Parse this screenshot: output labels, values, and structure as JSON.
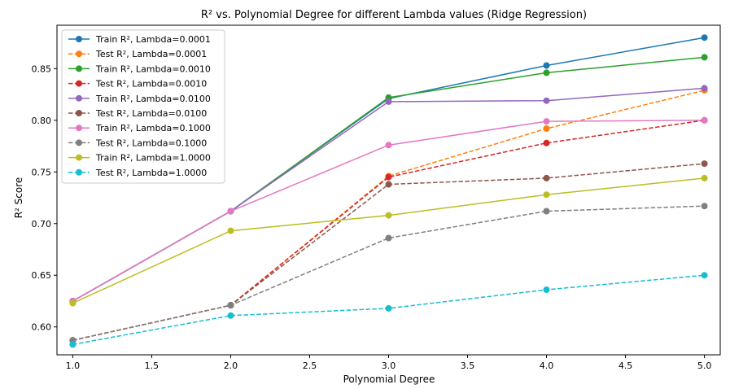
{
  "chart_data": {
    "type": "line",
    "title": "R² vs. Polynomial Degree for different Lambda values (Ridge Regression)",
    "xlabel": "Polynomial Degree",
    "ylabel": "R² Score",
    "xlim": [
      0.9,
      5.1
    ],
    "ylim": [
      0.573,
      0.892
    ],
    "x_ticks": [
      "1.0",
      "1.5",
      "2.0",
      "2.5",
      "3.0",
      "3.5",
      "4.0",
      "4.5",
      "5.0"
    ],
    "y_ticks": [
      "0.60",
      "0.65",
      "0.70",
      "0.75",
      "0.80",
      "0.85"
    ],
    "grid": false,
    "legend_position": "upper-left",
    "x": [
      1,
      2,
      3,
      4,
      5
    ],
    "series": [
      {
        "name": "Train R², Lambda=0.0001",
        "color": "#1f77b4",
        "dashed": false,
        "values": [
          0.625,
          0.712,
          0.821,
          0.853,
          0.88
        ]
      },
      {
        "name": "Test R², Lambda=0.0001",
        "color": "#ff7f0e",
        "dashed": true,
        "values": [
          0.587,
          0.621,
          0.746,
          0.792,
          0.829
        ]
      },
      {
        "name": "Train R², Lambda=0.0010",
        "color": "#2ca02c",
        "dashed": false,
        "values": [
          0.625,
          0.712,
          0.822,
          0.846,
          0.861
        ]
      },
      {
        "name": "Test R², Lambda=0.0010",
        "color": "#d62728",
        "dashed": true,
        "values": [
          0.587,
          0.621,
          0.745,
          0.778,
          0.8
        ]
      },
      {
        "name": "Train R², Lambda=0.0100",
        "color": "#9467bd",
        "dashed": false,
        "values": [
          0.625,
          0.712,
          0.818,
          0.819,
          0.831
        ]
      },
      {
        "name": "Test R², Lambda=0.0100",
        "color": "#8c564b",
        "dashed": true,
        "values": [
          0.587,
          0.621,
          0.738,
          0.744,
          0.758
        ]
      },
      {
        "name": "Train R², Lambda=0.1000",
        "color": "#e377c2",
        "dashed": false,
        "values": [
          0.625,
          0.712,
          0.776,
          0.799,
          0.8
        ]
      },
      {
        "name": "Test R², Lambda=0.1000",
        "color": "#7f7f7f",
        "dashed": true,
        "values": [
          0.587,
          0.621,
          0.686,
          0.712,
          0.717
        ]
      },
      {
        "name": "Train R², Lambda=1.0000",
        "color": "#bcbd22",
        "dashed": false,
        "values": [
          0.623,
          0.693,
          0.708,
          0.728,
          0.744
        ]
      },
      {
        "name": "Test R², Lambda=1.0000",
        "color": "#17becf",
        "dashed": true,
        "values": [
          0.583,
          0.611,
          0.618,
          0.636,
          0.65
        ]
      }
    ]
  }
}
